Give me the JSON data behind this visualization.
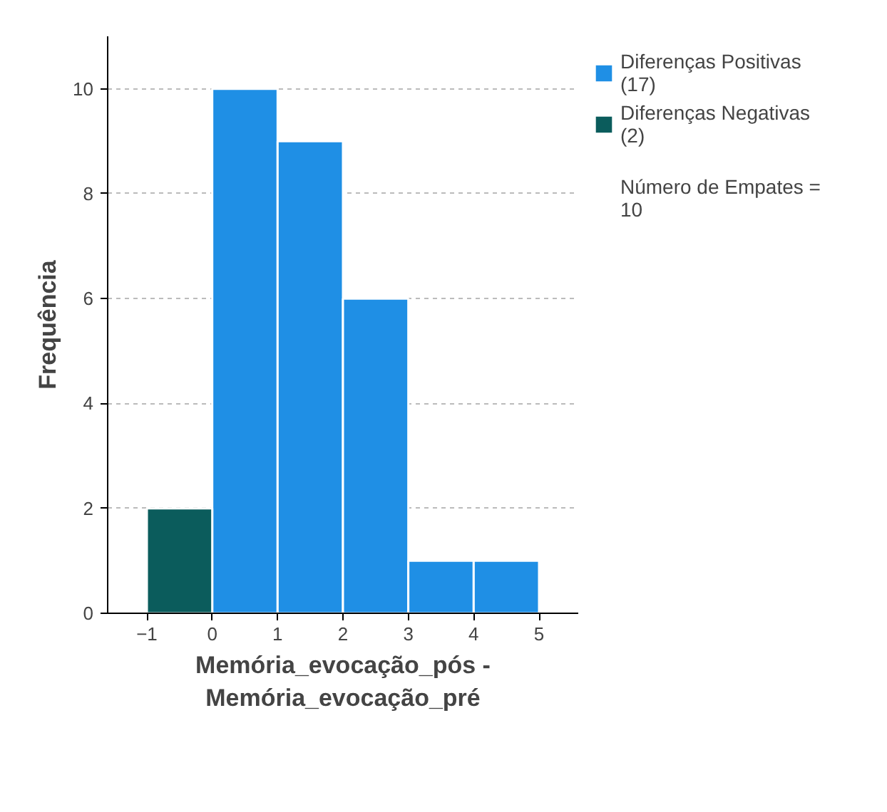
{
  "chart_data": {
    "type": "histogram",
    "xlabel": "Memória_evocação_pós -\nMemória_evocação_pré",
    "ylabel": "Frequência",
    "bins": [
      -1,
      0,
      1,
      2,
      3,
      4,
      5
    ],
    "series": [
      {
        "name": "Diferenças Positivas\n(17)",
        "color": "#1f8fe5",
        "values": [
          null,
          10,
          9,
          6,
          1,
          1
        ]
      },
      {
        "name": "Diferenças Negativas\n(2)",
        "color": "#0b5c5c",
        "values": [
          2,
          null,
          null,
          null,
          null,
          null
        ]
      }
    ],
    "xlim": [
      -1.6,
      5.6
    ],
    "xticks": [
      -1,
      0,
      1,
      2,
      3,
      4,
      5
    ],
    "ylim": [
      0,
      11
    ],
    "yticks": [
      0,
      2,
      4,
      6,
      8,
      10
    ],
    "grid": "y",
    "legend": "top right",
    "annotations": [
      "Número de Empates =\n10"
    ]
  }
}
